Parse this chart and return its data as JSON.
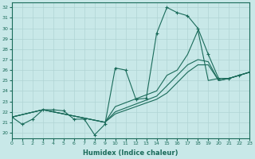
{
  "xlabel": "Humidex (Indice chaleur)",
  "background_color": "#c8e8e8",
  "line_color": "#1a6b5a",
  "xlim": [
    0,
    23
  ],
  "ylim": [
    19.5,
    32.5
  ],
  "xticks": [
    0,
    1,
    2,
    3,
    4,
    5,
    6,
    7,
    8,
    9,
    10,
    11,
    12,
    13,
    14,
    15,
    16,
    17,
    18,
    19,
    20,
    21,
    22,
    23
  ],
  "yticks": [
    20,
    21,
    22,
    23,
    24,
    25,
    26,
    27,
    28,
    29,
    30,
    31,
    32
  ],
  "series": [
    {
      "x": [
        0,
        1,
        2,
        3,
        4,
        5,
        6,
        7,
        8,
        9,
        10,
        11,
        12,
        13,
        14,
        15,
        16,
        17,
        18,
        19,
        20,
        21,
        22,
        23
      ],
      "y": [
        21.5,
        20.8,
        21.3,
        22.2,
        22.2,
        22.1,
        21.3,
        21.3,
        19.8,
        20.8,
        26.2,
        26.0,
        23.2,
        23.3,
        29.5,
        32.0,
        31.5,
        31.2,
        30.0,
        27.5,
        25.2,
        25.2,
        25.5,
        25.8
      ],
      "marker": "+"
    },
    {
      "x": [
        0,
        3,
        9,
        10,
        14,
        15,
        16,
        17,
        18,
        19,
        20,
        21,
        22,
        23
      ],
      "y": [
        21.5,
        22.2,
        21.0,
        22.5,
        24.0,
        25.5,
        26.0,
        27.5,
        29.8,
        25.0,
        25.2,
        25.2,
        25.5,
        25.8
      ],
      "marker": null
    },
    {
      "x": [
        0,
        3,
        9,
        10,
        14,
        15,
        16,
        17,
        18,
        19,
        20,
        21,
        22,
        23
      ],
      "y": [
        21.5,
        22.2,
        21.0,
        22.0,
        23.5,
        24.5,
        25.5,
        26.5,
        27.0,
        26.8,
        25.0,
        25.2,
        25.5,
        25.8
      ],
      "marker": null
    },
    {
      "x": [
        0,
        3,
        9,
        10,
        14,
        15,
        16,
        17,
        18,
        19,
        20,
        21,
        22,
        23
      ],
      "y": [
        21.5,
        22.2,
        21.0,
        21.8,
        23.2,
        23.8,
        24.8,
        25.8,
        26.5,
        26.5,
        25.0,
        25.2,
        25.5,
        25.8
      ],
      "marker": null
    }
  ]
}
